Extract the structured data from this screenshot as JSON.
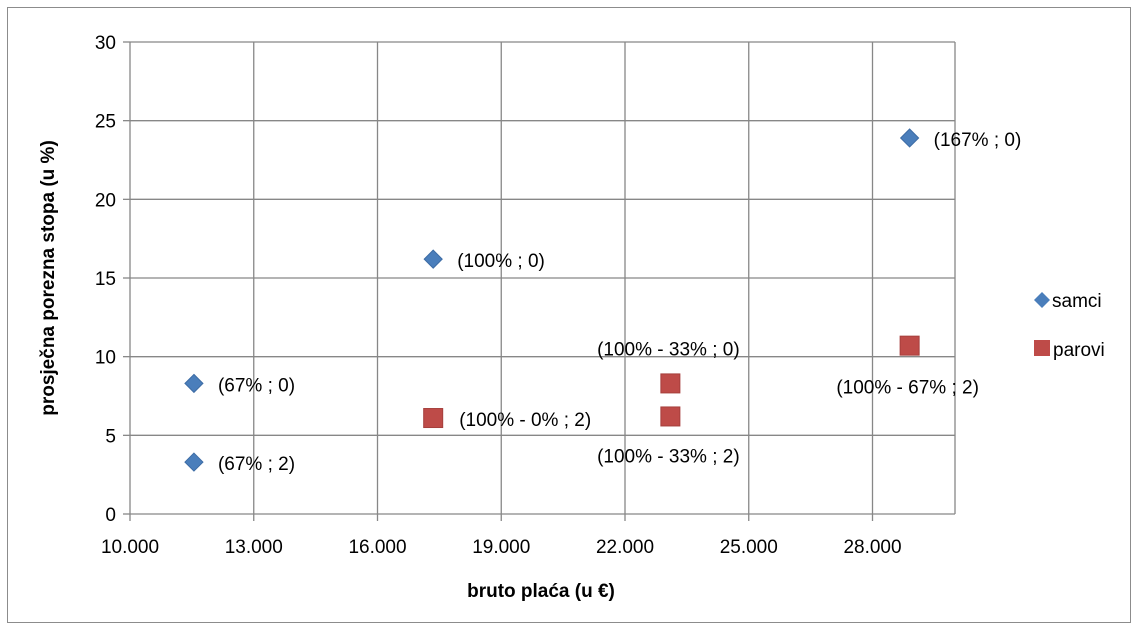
{
  "chart_data": {
    "type": "scatter",
    "title": "",
    "xlabel": "bruto plaća (u €)",
    "ylabel": "prosječna porezna stopa (u %)",
    "xlim": [
      10000,
      30000
    ],
    "ylim": [
      0,
      30
    ],
    "x_ticks": [
      10000,
      13000,
      16000,
      19000,
      22000,
      25000,
      28000
    ],
    "x_tick_labels": [
      "10.000",
      "13.000",
      "16.000",
      "19.000",
      "22.000",
      "25.000",
      "28.000"
    ],
    "y_ticks": [
      0,
      5,
      10,
      15,
      20,
      25,
      30
    ],
    "y_tick_labels": [
      "0",
      "5",
      "10",
      "15",
      "20",
      "25",
      "30"
    ],
    "grid": true,
    "legend_position": "right",
    "series": [
      {
        "name": "samci",
        "marker": "diamond",
        "color": "#4a7ebb",
        "points": [
          {
            "x": 11550,
            "y": 8.3,
            "label": "(67% ; 0)"
          },
          {
            "x": 11550,
            "y": 3.3,
            "label": "(67% ; 2)"
          },
          {
            "x": 17350,
            "y": 16.2,
            "label": "(100% ; 0)"
          },
          {
            "x": 28900,
            "y": 23.9,
            "label": "(167% ; 0)"
          }
        ]
      },
      {
        "name": "parovi",
        "marker": "square",
        "color": "#be4b48",
        "points": [
          {
            "x": 17350,
            "y": 6.1,
            "label": "(100% - 0% ; 2)"
          },
          {
            "x": 23100,
            "y": 8.3,
            "label": "(100% - 33% ; 0)"
          },
          {
            "x": 23100,
            "y": 6.2,
            "label": "(100% - 33% ; 2)"
          },
          {
            "x": 28900,
            "y": 10.7,
            "label": "(100% - 67% ; 2)"
          }
        ]
      }
    ]
  }
}
